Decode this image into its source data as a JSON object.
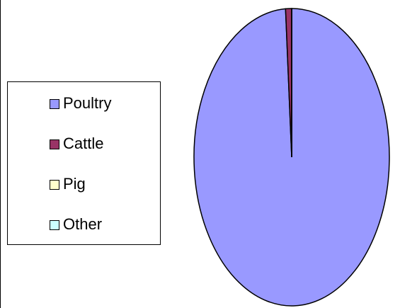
{
  "chart_data": {
    "type": "pie",
    "categories": [
      "Poultry",
      "Cattle",
      "Pig",
      "Other"
    ],
    "values": [
      99,
      1,
      0,
      0
    ],
    "colors": [
      "#9999ff",
      "#993366",
      "#ffffcc",
      "#ccffff"
    ],
    "legend": "left"
  }
}
